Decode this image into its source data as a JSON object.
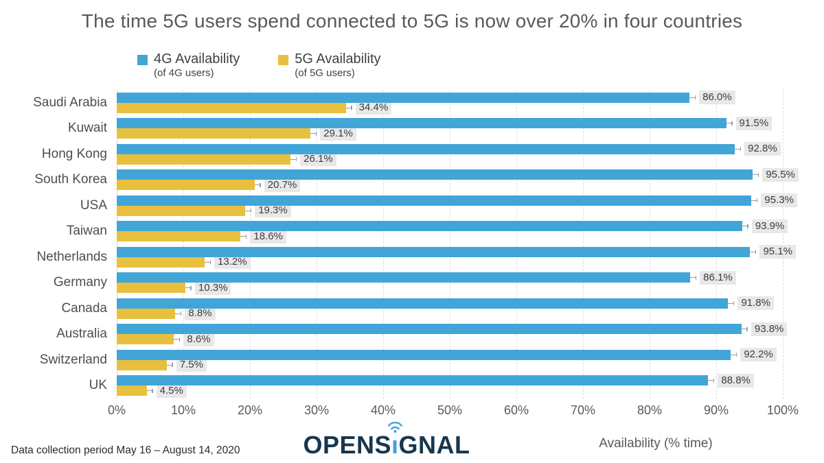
{
  "title": "The time 5G users spend connected to 5G is now over 20% in four countries",
  "legend": [
    {
      "label": "4G Availability",
      "sublabel": "(of 4G users)",
      "color": "#41a5d8"
    },
    {
      "label": "5G Availability",
      "sublabel": "(of 5G users)",
      "color": "#e9c03d"
    }
  ],
  "chart_data": {
    "type": "bar",
    "orientation": "horizontal",
    "title": "The time 5G users spend connected to 5G is now over 20% in four countries",
    "categories": [
      "Saudi Arabia",
      "Kuwait",
      "Hong Kong",
      "South Korea",
      "USA",
      "Taiwan",
      "Netherlands",
      "Germany",
      "Canada",
      "Australia",
      "Switzerland",
      "UK"
    ],
    "series": [
      {
        "name": "4G Availability (of 4G users)",
        "color": "#41a5d8",
        "values": [
          86.0,
          91.5,
          92.8,
          95.5,
          95.3,
          93.9,
          95.1,
          86.1,
          91.8,
          93.8,
          92.2,
          88.8
        ]
      },
      {
        "name": "5G Availability (of 5G users)",
        "color": "#e9c03d",
        "values": [
          34.4,
          29.1,
          26.1,
          20.7,
          19.3,
          18.6,
          13.2,
          10.3,
          8.8,
          8.6,
          7.5,
          4.5
        ]
      }
    ],
    "value_label_suffix": "%",
    "xlabel": "Availability (% time)",
    "xlim": [
      0,
      100
    ],
    "x_ticks": [
      "0%",
      "10%",
      "20%",
      "30%",
      "40%",
      "50%",
      "60%",
      "70%",
      "80%",
      "90%",
      "100%"
    ],
    "grid": "vertical-dashed",
    "legend_position": "top-left",
    "error_bars": true
  },
  "footer": {
    "note": "Data collection period May 16 – August 14, 2020",
    "logo": {
      "part1": "OPENS",
      "i": "ı",
      "part2": "GNAL",
      "text_color": "#17374e",
      "accent_color": "#3fa3d7"
    }
  },
  "colors": {
    "background": "#ffffff",
    "title_text": "#58595b",
    "category_text": "#4d4d4d",
    "value_label_bg": "#e8e8e8",
    "value_label_text": "#3c3c3c",
    "gridline": "#dcdcdc",
    "tick_text": "#58595b"
  }
}
